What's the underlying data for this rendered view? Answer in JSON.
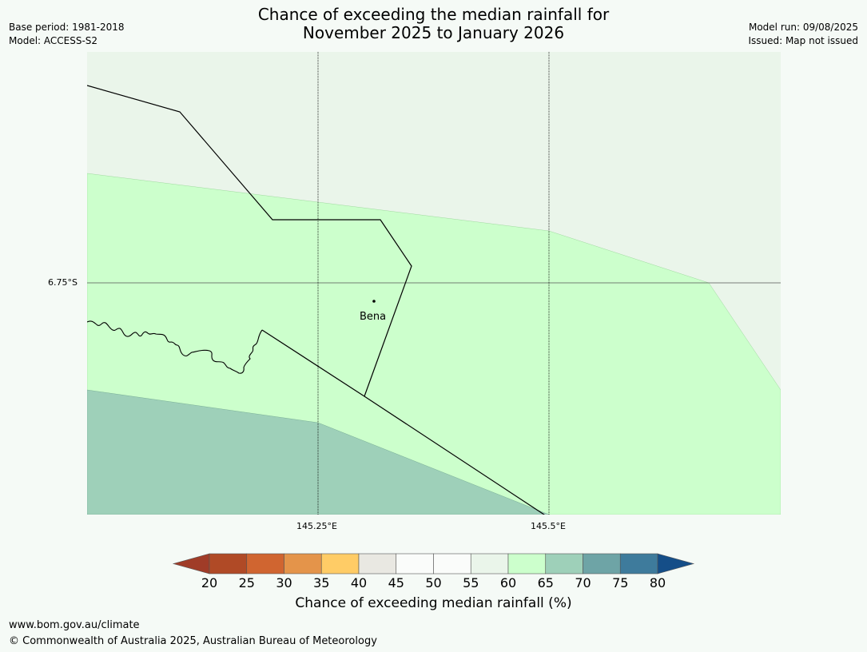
{
  "header": {
    "base_period": "Base period: 1981-2018",
    "model": "Model: ACCESS-S2",
    "model_run": "Model run: 09/08/2025",
    "issued": "Issued: Map not issued"
  },
  "title": {
    "line1": "Chance of exceeding the median rainfall for",
    "line2": "November 2025 to January 2026"
  },
  "map": {
    "latitude_labels": [
      "6.75°S"
    ],
    "longitude_labels": [
      "145.25°E",
      "145.5°E"
    ],
    "place": {
      "name": "Bena",
      "icon": "city-dot-icon"
    },
    "zone_colors": {
      "outer": "#eaf5ea",
      "band_60_65": "#ccffcc",
      "band_65_70": "#9ed0b9"
    }
  },
  "colorbar": {
    "label": "Chance of exceeding median rainfall (%)",
    "ticks": [
      "20",
      "25",
      "30",
      "35",
      "40",
      "45",
      "50",
      "55",
      "60",
      "65",
      "70",
      "75",
      "80"
    ],
    "under_color": "#a03c28",
    "over_color": "#154e88",
    "colors": [
      "#b04a26",
      "#d06530",
      "#e4944a",
      "#ffcc66",
      "#e9e8e2",
      "#fafcfa",
      "#fafcfa",
      "#eaf5ea",
      "#ccffcc",
      "#9ed0b9",
      "#6ea4a6",
      "#3e7b9c"
    ]
  },
  "footer": {
    "url": "www.bom.gov.au/climate",
    "copyright": "© Commonwealth of Australia 2025, Australian Bureau of Meteorology"
  }
}
